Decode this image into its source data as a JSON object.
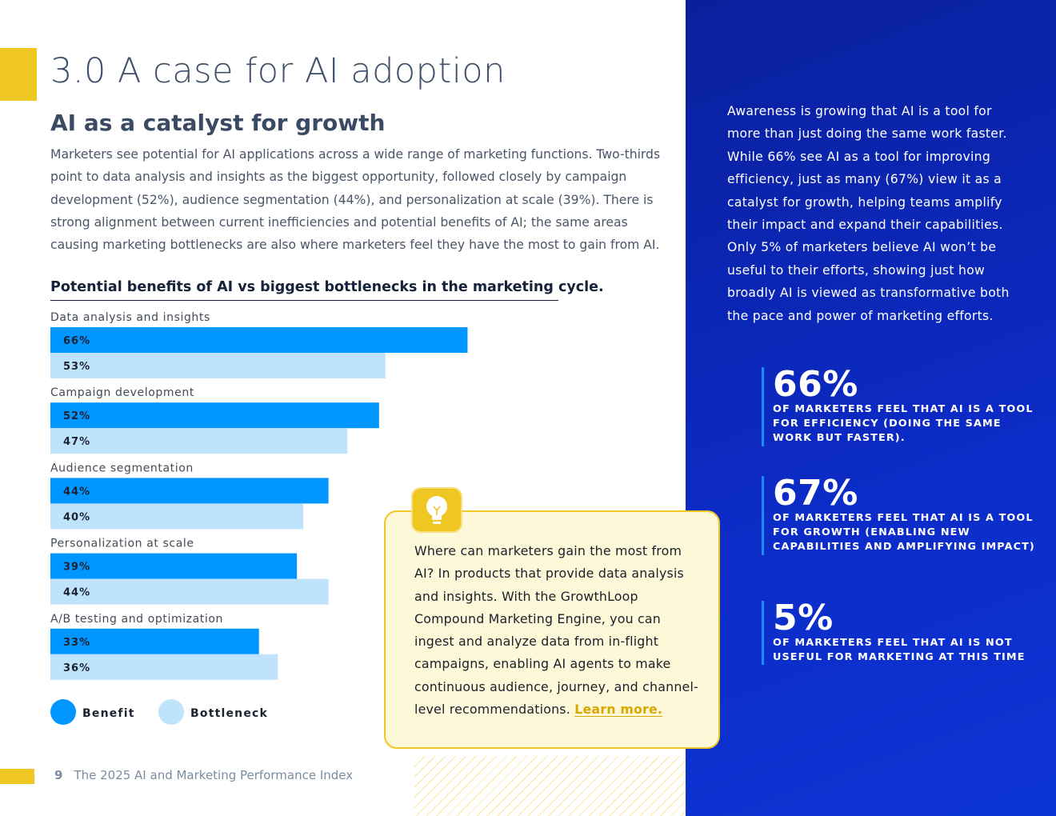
{
  "header": {
    "title": "3.0 A case for AI adoption",
    "subtitle": "AI as a catalyst for growth",
    "intro": "Marketers see potential for AI applications across a wide range of marketing functions. Two-thirds point to data analysis and insights as the biggest opportunity, followed closely by campaign development (52%), audience segmentation (44%), and personalization at scale (39%). There is strong alignment between current inefficiencies and potential benefits of AI; the same areas causing marketing bottlenecks are also where marketers feel they have the most to gain from AI."
  },
  "chart_data": {
    "type": "bar",
    "orientation": "horizontal",
    "title": "Potential benefits of AI vs biggest bottlenecks in the marketing cycle.",
    "categories": [
      "Data analysis and insights",
      "Campaign development",
      "Audience segmentation",
      "Personalization at scale",
      "A/B testing and optimization"
    ],
    "series": [
      {
        "name": "Benefit",
        "values": [
          66,
          52,
          44,
          39,
          33
        ],
        "color": "#0096ff"
      },
      {
        "name": "Bottleneck",
        "values": [
          53,
          47,
          40,
          44,
          36
        ],
        "color": "#bfe3fb"
      }
    ],
    "value_suffix": "%",
    "xlim": [
      0,
      100
    ],
    "legend_position": "bottom-left"
  },
  "callout": {
    "icon": "lightbulb-icon",
    "text": "Where can marketers gain the most from AI? In products that provide data analysis and insights. With the GrowthLoop Compound Marketing Engine, you can ingest and analyze data from in-flight campaigns, enabling AI agents to make continuous audience, journey, and channel-level recommendations.",
    "link_label": "Learn more."
  },
  "sidebar": {
    "text": "Awareness is growing that AI is a tool for more than just doing the same work faster. While 66% see AI as a tool for improving efficiency, just as many (67%) view it as a catalyst for growth, helping teams amplify their impact and expand their capabilities. Only 5% of marketers believe AI won’t be useful to their efforts, showing just how broadly AI is viewed as transformative both the pace and power of marketing efforts.",
    "stats": [
      {
        "value": "66%",
        "label": "OF MARKETERS FEEL THAT AI IS A TOOL FOR EFFICIENCY (DOING THE SAME WORK BUT FASTER)."
      },
      {
        "value": "67%",
        "label": "OF MARKETERS FEEL THAT AI IS A TOOL FOR GROWTH (ENABLING NEW CAPABILITIES AND AMPLIFYING IMPACT)"
      },
      {
        "value": "5%",
        "label": "OF MARKETERS FEEL THAT AI IS NOT USEFUL FOR MARKETING AT THIS TIME"
      }
    ]
  },
  "footer": {
    "page_number": "9",
    "publication": "The 2025 AI and Marketing Performance Index"
  },
  "colors": {
    "accent_yellow": "#efc722",
    "panel_blue": "#0c2cc8",
    "benefit_blue": "#0096ff",
    "bottleneck_blue": "#bfe3fb"
  }
}
